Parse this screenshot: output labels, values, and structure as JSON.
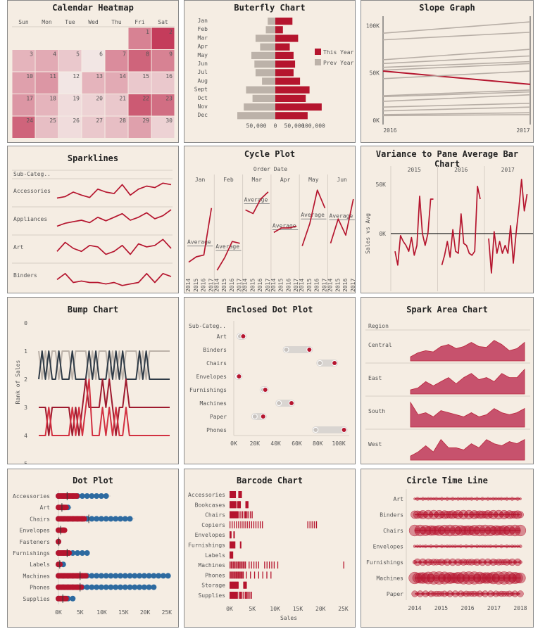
{
  "colors": {
    "red": "#b5152e",
    "grey": "#bcb2a9",
    "dark": "#2f3b47",
    "bg": "#f5ede3"
  },
  "chart_data": [
    {
      "id": "calendar",
      "type": "heatmap",
      "title": "Calendar Heatmap",
      "days": [
        "Sun",
        "Mon",
        "Tue",
        "Wed",
        "Thu",
        "Fri",
        "Sat"
      ],
      "first_weekday": 5,
      "n_days": 30,
      "values": [
        0.55,
        0.9,
        0.3,
        0.35,
        0.2,
        0.05,
        0.5,
        0.7,
        0.55,
        0.4,
        0.45,
        0.05,
        0.3,
        0.35,
        0.2,
        0.2,
        0.45,
        0.3,
        0.1,
        0.15,
        0.2,
        0.75,
        0.65,
        0.7,
        0.25,
        0.1,
        0.2,
        0.25,
        0.4,
        0.15
      ]
    },
    {
      "id": "butterfly",
      "type": "bar",
      "title": "Buterfly Chart",
      "categories": [
        "Jan",
        "Feb",
        "Mar",
        "Apr",
        "May",
        "Jun",
        "Jul",
        "Aug",
        "Sept",
        "Oct",
        "Nov",
        "Dec"
      ],
      "series": [
        {
          "name": "This Year",
          "values": [
            45000,
            20000,
            60000,
            38000,
            48000,
            52000,
            48000,
            65000,
            90000,
            80000,
            122000,
            85000
          ]
        },
        {
          "name": "Prev Year",
          "values": [
            20000,
            25000,
            52000,
            40000,
            63000,
            55000,
            52000,
            35000,
            77000,
            60000,
            83000,
            100000
          ]
        }
      ],
      "tick_labels": [
        "50,000",
        "0",
        "50,000",
        "100,000"
      ]
    },
    {
      "id": "slope",
      "type": "line",
      "title": "Slope Graph",
      "x": [
        "2016",
        "2017"
      ],
      "y_ticks": [
        "100K",
        "50K",
        "0K"
      ],
      "ylim": [
        0,
        110000
      ],
      "series": [
        {
          "values": [
            92000,
            104000
          ]
        },
        {
          "values": [
            85000,
            93000
          ]
        },
        {
          "values": [
            64000,
            75000
          ]
        },
        {
          "values": [
            60000,
            68000
          ]
        },
        {
          "values": [
            56000,
            62000
          ]
        },
        {
          "values": [
            53000,
            60000
          ]
        },
        {
          "values": [
            52000,
            38000
          ],
          "highlight": true
        },
        {
          "values": [
            44000,
            52000
          ]
        },
        {
          "values": [
            26000,
            32000
          ]
        },
        {
          "values": [
            25000,
            30000
          ]
        },
        {
          "values": [
            20000,
            27000
          ]
        },
        {
          "values": [
            14000,
            18000
          ]
        },
        {
          "values": [
            10000,
            14000
          ]
        },
        {
          "values": [
            6000,
            8000
          ]
        },
        {
          "values": [
            5000,
            6000
          ]
        }
      ]
    },
    {
      "id": "sparklines",
      "type": "line",
      "title": "Sparklines",
      "header": "Sub-Categ..",
      "series": [
        {
          "name": "Accessories",
          "values": [
            2,
            2.5,
            4,
            3,
            2.2,
            5,
            4,
            3.5,
            6.5,
            3,
            5,
            6,
            5.5,
            7,
            6.5
          ]
        },
        {
          "name": "Appliances",
          "values": [
            2,
            3,
            3.5,
            4,
            3.2,
            5,
            3.8,
            5,
            6.2,
            4,
            5,
            6.5,
            4.5,
            5.5,
            7.5
          ]
        },
        {
          "name": "Art",
          "values": [
            3,
            6,
            4,
            3,
            5,
            4.5,
            2,
            3,
            5,
            2,
            5.5,
            4.5,
            5,
            7,
            4
          ]
        },
        {
          "name": "Binders",
          "values": [
            3,
            5,
            2,
            2.5,
            2,
            2,
            1.5,
            2,
            1,
            1.5,
            2,
            5,
            2,
            5,
            4
          ]
        }
      ]
    },
    {
      "id": "cycle",
      "type": "line",
      "title": "Cycle Plot",
      "header": "Order Date",
      "months": [
        "Jan",
        "Feb",
        "Mar",
        "Apr",
        "May",
        "Jun"
      ],
      "years": [
        "2014",
        "2015",
        "2016",
        "2017"
      ],
      "average_label": "Average",
      "series": [
        {
          "name": "Jan",
          "values": [
            12,
            18,
            20,
            72
          ],
          "avg": 30
        },
        {
          "name": "Feb",
          "values": [
            3,
            17,
            35,
            33
          ],
          "avg": 25
        },
        {
          "name": "Mar",
          "values": [
            70,
            66,
            82,
            90
          ],
          "avg": 77
        },
        {
          "name": "Apr",
          "values": [
            45,
            50,
            50,
            52
          ],
          "avg": 48
        },
        {
          "name": "May",
          "values": [
            30,
            55,
            92,
            72
          ],
          "avg": 60
        },
        {
          "name": "Jun",
          "values": [
            33,
            60,
            42,
            82
          ],
          "avg": 59
        }
      ]
    },
    {
      "id": "variance",
      "type": "line",
      "title": "Variance to Pane Average Bar Chart",
      "years": [
        "2015",
        "2016",
        "2017"
      ],
      "ylabel": "Sales vs Avg",
      "y_ticks": [
        "50K",
        "0K"
      ],
      "series": [
        {
          "name": "2015",
          "values": [
            -18000,
            -32000,
            -2000,
            -8000,
            -12000,
            -18000,
            -4000,
            -22000,
            -12000,
            38000,
            0,
            -12000,
            0,
            35000,
            35000
          ]
        },
        {
          "name": "2016",
          "values": [
            -32000,
            -22000,
            -8000,
            -24000,
            4000,
            -18000,
            -20000,
            20000,
            -10000,
            -12000,
            -20000,
            -22000,
            -18000,
            48000,
            35000
          ]
        },
        {
          "name": "2017",
          "values": [
            -5000,
            -40000,
            2000,
            -20000,
            -8000,
            -20000,
            -12000,
            -20000,
            8000,
            -30000,
            0,
            25000,
            55000,
            23000,
            40000
          ]
        }
      ]
    },
    {
      "id": "bump",
      "type": "line",
      "title": "Bump Chart",
      "ylabel": "Rank of Sales",
      "y_ticks": [
        "0",
        "1",
        "2",
        "3",
        "4",
        "5"
      ]
    },
    {
      "id": "enclosed",
      "type": "scatter",
      "title": "Enclosed Dot Plot",
      "header": "Sub-Categ..",
      "categories": [
        "Art",
        "Binders",
        "Chairs",
        "Envelopes",
        "Furnishings",
        "Machines",
        "Paper",
        "Phones"
      ],
      "series": [
        {
          "name": "low",
          "values": [
            6000,
            50000,
            82000,
            4000,
            28000,
            43000,
            20000,
            78000
          ]
        },
        {
          "name": "high",
          "values": [
            9000,
            72000,
            96000,
            5000,
            30000,
            55000,
            28000,
            105000
          ]
        }
      ],
      "x_ticks": [
        "0K",
        "20K",
        "40K",
        "60K",
        "80K",
        "100K"
      ],
      "xlim": [
        0,
        110000
      ]
    },
    {
      "id": "sparkarea",
      "type": "area",
      "title": "Spark Area Chart",
      "header": "Region",
      "series": [
        {
          "name": "Central",
          "values": [
            1,
            2,
            2.5,
            2.2,
            3.5,
            4,
            3,
            3.5,
            4.5,
            3.5,
            3.3,
            5,
            4,
            2.5,
            3,
            4.5
          ]
        },
        {
          "name": "East",
          "values": [
            1,
            1.5,
            3,
            2,
            3,
            4,
            2.5,
            4,
            5,
            3.5,
            4,
            3,
            5,
            4,
            4,
            6
          ]
        },
        {
          "name": "South",
          "values": [
            6,
            3,
            3.5,
            2.5,
            4,
            3.5,
            3,
            2.5,
            3.5,
            2.5,
            3,
            4.5,
            3.5,
            3,
            3.5,
            4.5
          ]
        },
        {
          "name": "West",
          "values": [
            1,
            2,
            3.5,
            2,
            5,
            3,
            3,
            2.5,
            4,
            3,
            5,
            4,
            3.5,
            4.5,
            4,
            5
          ]
        }
      ]
    },
    {
      "id": "dotplot",
      "type": "scatter",
      "title": "Dot Plot",
      "categories": [
        "Accessories",
        "Art",
        "Chairs",
        "Envelopes",
        "Fasteners",
        "Furnishings",
        "Labels",
        "Machines",
        "Phones",
        "Supplies"
      ],
      "red_max": [
        4500,
        1800,
        6000,
        1500,
        300,
        2500,
        600,
        6500,
        5500,
        2000
      ],
      "blue_max": [
        12000,
        3000,
        17500,
        1800,
        400,
        7000,
        1200,
        25500,
        22000,
        3500
      ],
      "marker": [
        2000,
        800,
        7000,
        500,
        100,
        2000,
        300,
        5000,
        5000,
        1000
      ],
      "x_ticks": [
        "0K",
        "5K",
        "10K",
        "15K",
        "20K",
        "25K"
      ],
      "xlim": [
        0,
        26000
      ]
    },
    {
      "id": "barcode",
      "type": "bar",
      "title": "Barcode Chart",
      "xlabel": "Sales",
      "categories": [
        "Accessories",
        "Bookcases",
        "Chairs",
        "Copiers",
        "Envelopes",
        "Furnishings",
        "Labels",
        "Machines",
        "Phones",
        "Storage",
        "Supplies"
      ],
      "max_values": [
        3500,
        4000,
        5000,
        19000,
        1000,
        2500,
        700,
        10500,
        9000,
        4000,
        5000
      ],
      "outliers": [
        null,
        null,
        null,
        19000,
        null,
        null,
        null,
        25000,
        null,
        null,
        null
      ],
      "x_ticks": [
        "0K",
        "5K",
        "10K",
        "15K",
        "20K",
        "25K"
      ],
      "xlim": [
        0,
        26000
      ]
    },
    {
      "id": "circle",
      "type": "scatter",
      "title": "Circle Time Line",
      "categories": [
        "Art",
        "Binders",
        "Chairs",
        "Envelopes",
        "Furnishings",
        "Machines",
        "Paper"
      ],
      "sizes": [
        2.5,
        6.5,
        8,
        2.5,
        5,
        9,
        4.5
      ],
      "x_ticks": [
        "2014",
        "2015",
        "2016",
        "2017",
        "2018"
      ]
    }
  ]
}
